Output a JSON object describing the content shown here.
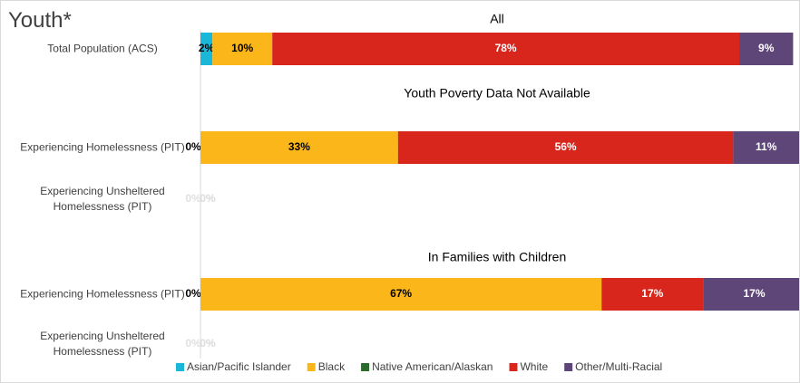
{
  "chart_data": {
    "type": "stacked-bar-horizontal",
    "title": "Youth*",
    "categories": [
      "Total Population (ACS)",
      "Experiencing Homelessness (PIT)",
      "Experiencing Unsheltered Homelessness (PIT)",
      "Experiencing Homelessness (PIT)",
      "Experiencing Unsheltered Homelessness (PIT)"
    ],
    "annotations": [
      "All",
      "Youth Poverty Data Not Available",
      "In Families with Children"
    ],
    "xlim": [
      0,
      100
    ],
    "legend": "bottom",
    "series": [
      {
        "name": "Asian/Pacific Islander",
        "color": "#1ab7d9",
        "values": [
          2,
          0,
          0,
          0,
          0
        ],
        "value_labels": [
          "2%",
          "0%",
          "0%",
          "0%",
          "0%"
        ]
      },
      {
        "name": "Black",
        "color": "#fbb61a",
        "values": [
          10,
          33,
          0,
          67,
          0
        ],
        "value_labels": [
          "10%",
          "33%",
          "0%",
          "67%",
          "0%"
        ]
      },
      {
        "name": "Native American/Alaskan",
        "color": "#2d6a2d",
        "values": [
          0,
          0,
          0,
          0,
          0
        ],
        "value_labels": [
          "0%",
          "0%",
          "0%",
          "0%",
          "0%"
        ]
      },
      {
        "name": "White",
        "color": "#d9261c",
        "values": [
          78,
          56,
          0,
          17,
          0
        ],
        "value_labels": [
          "78%",
          "56%",
          "0%",
          "17%",
          "0%"
        ]
      },
      {
        "name": "Other/Multi-Racial",
        "color": "#5e4679",
        "values": [
          9,
          11,
          0,
          17,
          0
        ],
        "value_labels": [
          "9%",
          "11%",
          "0%",
          "17%",
          "0%"
        ]
      }
    ]
  }
}
